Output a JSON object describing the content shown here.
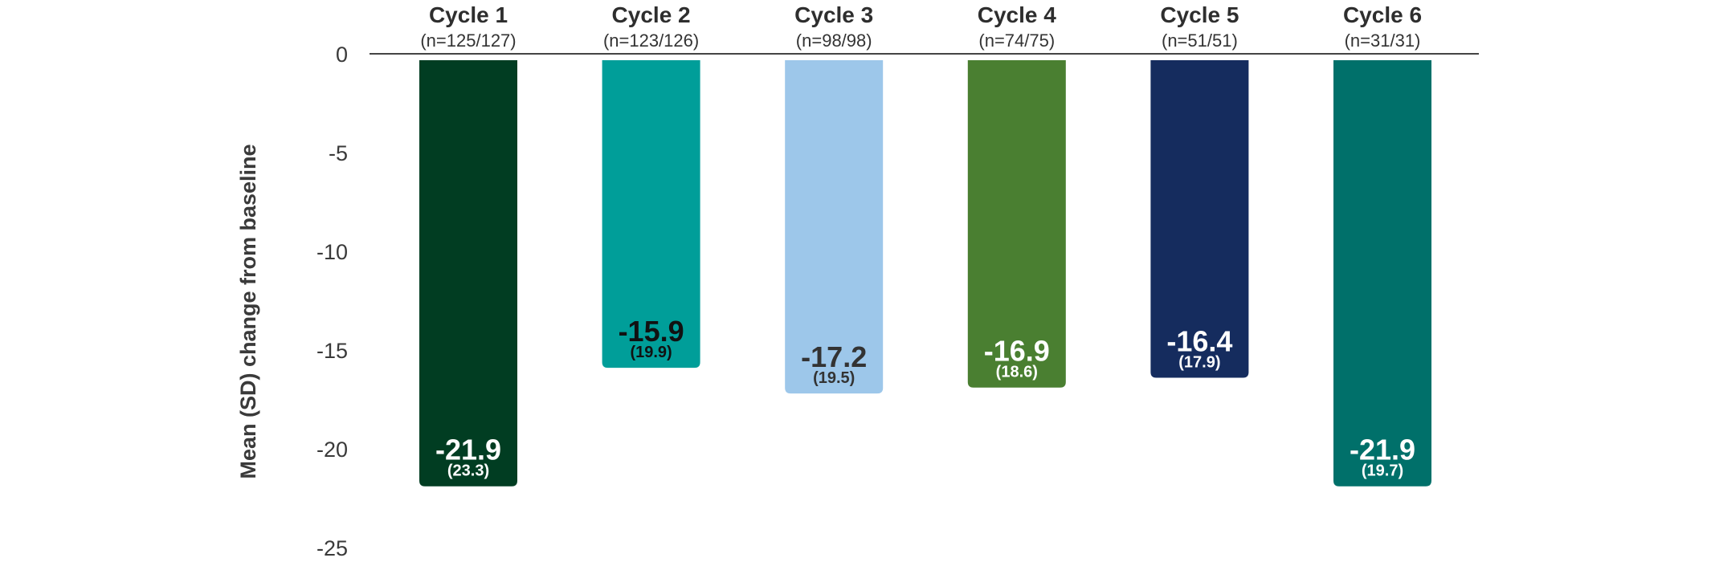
{
  "chart_data": {
    "type": "bar",
    "ylabel": "Mean (SD) change from baseline",
    "ylim": [
      -25,
      0
    ],
    "yticks": [
      "0",
      "-5",
      "-10",
      "-15",
      "-20",
      "-25"
    ],
    "ytick_values": [
      0,
      -5,
      -10,
      -15,
      -20,
      -25
    ],
    "categories": [
      "Cycle 1",
      "Cycle 2",
      "Cycle 3",
      "Cycle 4",
      "Cycle 5",
      "Cycle 6"
    ],
    "n_labels": [
      "(n=125/127)",
      "(n=123/126)",
      "(n=98/98)",
      "(n=74/75)",
      "(n=51/51)",
      "(n=31/31)"
    ],
    "values": [
      -21.9,
      -15.9,
      -17.2,
      -16.9,
      -16.4,
      -21.9
    ],
    "value_labels": [
      "-21.9",
      "-15.9",
      "-17.2",
      "-16.9",
      "-16.4",
      "-21.9"
    ],
    "sd_labels": [
      "(23.3)",
      "(19.9)",
      "(19.5)",
      "(18.6)",
      "(17.9)",
      "(19.7)"
    ],
    "colors": [
      "#013d22",
      "#009e99",
      "#9dc7ea",
      "#4a7f31",
      "#152c5e",
      "#00706a"
    ],
    "label_colors": [
      "#ffffff",
      "#111111",
      "#333333",
      "#ffffff",
      "#ffffff",
      "#ffffff"
    ],
    "grid": false
  }
}
